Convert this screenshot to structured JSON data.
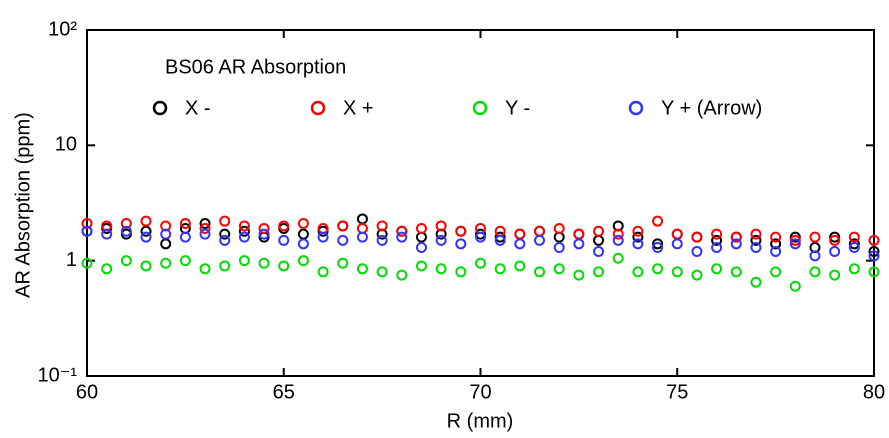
{
  "chart_data": {
    "type": "scatter",
    "title": "BS06 AR Absorption",
    "xlabel": "R (mm)",
    "ylabel": "AR Absorption (ppm)",
    "log_y": true,
    "xlim": [
      60,
      80
    ],
    "xticks": [
      60,
      65,
      70,
      75,
      80
    ],
    "ylim": [
      0.1,
      100
    ],
    "yticks": [
      {
        "value": 0.1,
        "label": "10⁻¹"
      },
      1,
      10,
      {
        "value": 100,
        "label": "10²"
      }
    ],
    "x": [
      60,
      60.5,
      61,
      61.5,
      62,
      62.5,
      63,
      63.5,
      64,
      64.5,
      65,
      65.5,
      66,
      66.5,
      67,
      67.5,
      68,
      68.5,
      69,
      69.5,
      70,
      70.5,
      71,
      71.5,
      72,
      72.5,
      73,
      73.5,
      74,
      74.5,
      75,
      75.5,
      76,
      76.5,
      77,
      77.5,
      78,
      78.5,
      79,
      79.5,
      80
    ],
    "series": [
      {
        "name": "X -",
        "color": "#000000",
        "values": [
          1.8,
          1.9,
          1.7,
          1.8,
          1.4,
          1.9,
          2.1,
          1.7,
          1.8,
          1.6,
          1.9,
          1.7,
          1.8,
          2.0,
          2.3,
          1.7,
          1.8,
          1.6,
          1.7,
          1.8,
          1.7,
          1.6,
          1.7,
          1.8,
          1.6,
          1.7,
          1.5,
          2.0,
          1.6,
          1.4,
          1.7,
          1.6,
          1.5,
          1.6,
          1.5,
          1.4,
          1.6,
          1.3,
          1.6,
          1.4,
          1.2
        ]
      },
      {
        "name": "X +",
        "color": "#ff0000",
        "values": [
          2.1,
          2.0,
          2.1,
          2.2,
          2.0,
          2.1,
          1.9,
          2.2,
          2.0,
          1.9,
          2.0,
          2.1,
          1.9,
          2.0,
          1.9,
          2.0,
          1.8,
          1.9,
          2.0,
          1.8,
          1.9,
          1.8,
          1.7,
          1.8,
          1.9,
          1.7,
          1.8,
          1.7,
          1.8,
          2.2,
          1.7,
          1.6,
          1.7,
          1.6,
          1.7,
          1.6,
          1.5,
          1.6,
          1.5,
          1.6,
          1.5
        ]
      },
      {
        "name": "Y -",
        "color": "#00dd00",
        "values": [
          0.95,
          0.85,
          1.0,
          0.9,
          0.95,
          1.0,
          0.85,
          0.9,
          1.0,
          0.95,
          0.9,
          1.0,
          0.8,
          0.95,
          0.85,
          0.8,
          0.75,
          0.9,
          0.85,
          0.8,
          0.95,
          0.85,
          0.9,
          0.8,
          0.85,
          0.75,
          0.8,
          1.05,
          0.8,
          0.85,
          0.8,
          0.75,
          0.85,
          0.8,
          0.65,
          0.8,
          0.6,
          0.8,
          0.75,
          0.85,
          0.8
        ]
      },
      {
        "name": "Y + (Arrow)",
        "color": "#3333ff",
        "values": [
          1.8,
          1.7,
          1.8,
          1.6,
          1.7,
          1.6,
          1.7,
          1.5,
          1.6,
          1.7,
          1.5,
          1.4,
          1.6,
          1.5,
          1.6,
          1.5,
          1.6,
          1.3,
          1.5,
          1.4,
          1.6,
          1.5,
          1.4,
          1.5,
          1.3,
          1.4,
          1.2,
          1.5,
          1.4,
          1.3,
          1.4,
          1.2,
          1.3,
          1.4,
          1.3,
          1.2,
          1.4,
          1.1,
          1.2,
          1.3,
          1.1
        ]
      }
    ]
  }
}
